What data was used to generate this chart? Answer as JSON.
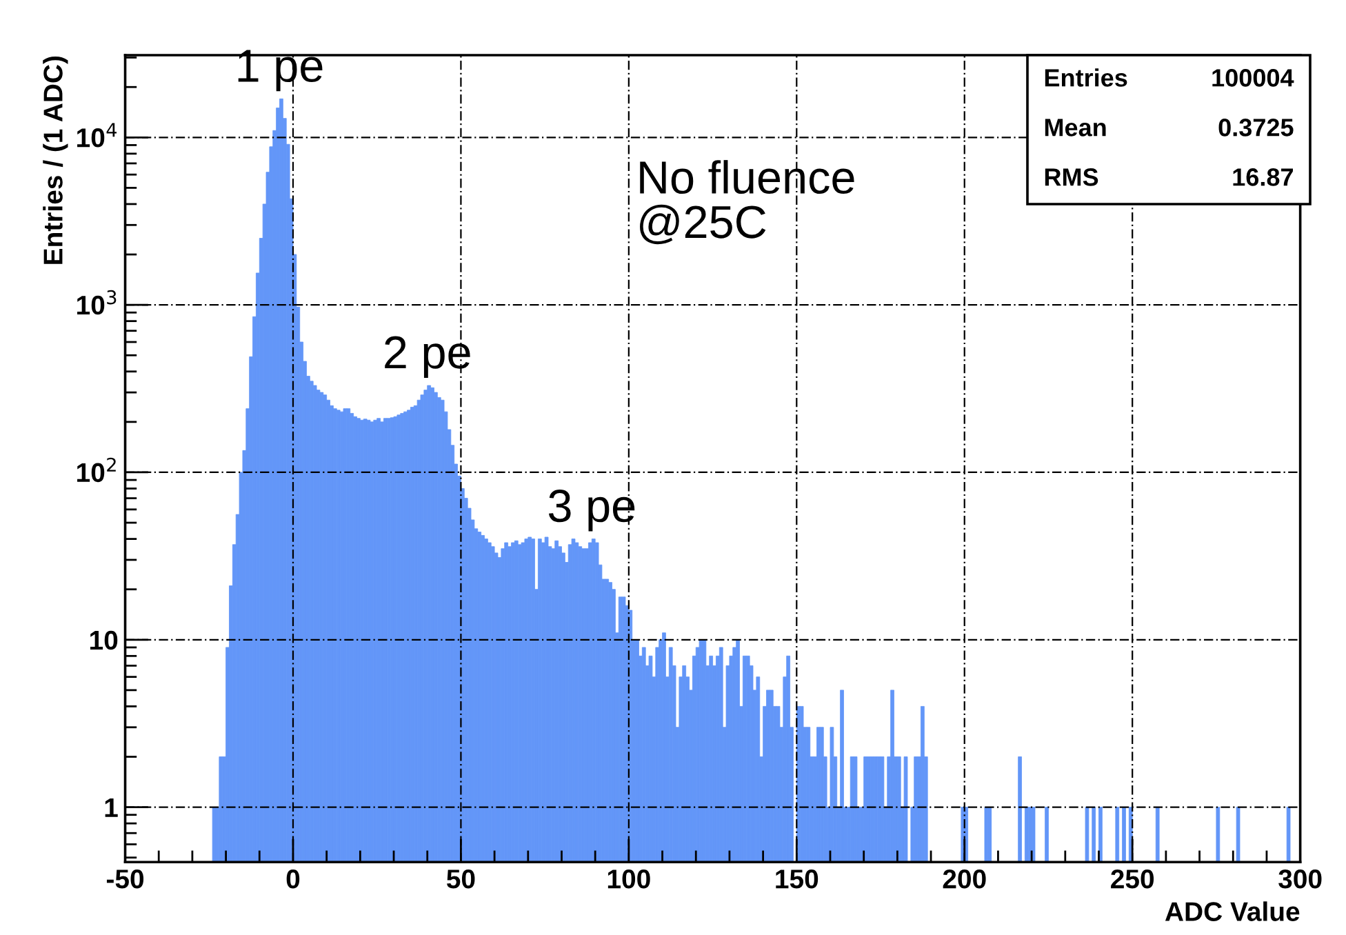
{
  "chart_data": {
    "type": "histogram",
    "xlabel": "ADC Value",
    "ylabel": "Entries / (1 ADC)",
    "color": "#6396f8",
    "log": "y",
    "grid": true,
    "xlim": [
      -50,
      300
    ],
    "xticks": [
      -50,
      0,
      50,
      100,
      150,
      200,
      250,
      300
    ],
    "ylim": [
      0.47,
      31000
    ],
    "yticks": [
      1,
      10,
      {
        "value": 100,
        "label": "10$^{2}$"
      },
      {
        "value": 1000,
        "label": "10$^{3}$"
      },
      {
        "value": 10000,
        "label": "10$^{4}$"
      }
    ],
    "annotations": [
      {
        "text": "1 pe",
        "x": -4,
        "y": 17000
      },
      {
        "text": "2 pe",
        "x": 40,
        "y": 330
      },
      {
        "text": "3 pe",
        "x": 89,
        "y": 40
      },
      "No fluence\n@25C",
      "Entries",
      "100004",
      "Mean",
      "0.3725",
      "RMS",
      "16.87"
    ],
    "bins": [
      -25,
      -24,
      -23,
      -22,
      -21,
      -20,
      -19,
      -18,
      -17,
      -16,
      -15,
      -14,
      -13,
      -12,
      -11,
      -10,
      -9,
      -8,
      -7,
      -6,
      -5,
      -4,
      -3,
      -2,
      -1,
      0,
      1,
      2,
      3,
      4,
      5,
      6,
      7,
      8,
      9,
      10,
      11,
      12,
      13,
      14,
      15,
      16,
      17,
      18,
      19,
      20,
      21,
      22,
      23,
      24,
      25,
      26,
      27,
      28,
      29,
      30,
      31,
      32,
      33,
      34,
      35,
      36,
      37,
      38,
      39,
      40,
      41,
      42,
      43,
      44,
      45,
      46,
      47,
      48,
      49,
      50,
      51,
      52,
      53,
      54,
      55,
      56,
      57,
      58,
      59,
      60,
      61,
      62,
      63,
      64,
      65,
      66,
      67,
      68,
      69,
      70,
      71,
      72,
      73,
      74,
      75,
      76,
      77,
      78,
      79,
      80,
      81,
      82,
      83,
      84,
      85,
      86,
      87,
      88,
      89,
      90,
      91,
      92,
      93,
      94,
      95,
      96,
      97,
      98,
      99,
      100,
      101,
      102,
      103,
      104,
      105,
      106,
      107,
      108,
      109,
      110,
      111,
      112,
      113,
      114,
      115,
      116,
      117,
      118,
      119,
      120,
      121,
      122,
      123,
      124,
      125,
      126,
      127,
      128,
      129,
      130,
      131,
      132,
      133,
      134,
      135,
      136,
      137,
      138,
      139,
      140,
      141,
      142,
      143,
      144,
      145,
      146,
      147,
      148,
      149,
      150,
      151,
      152,
      153,
      154,
      155,
      156,
      157,
      158,
      159,
      160,
      161,
      162,
      163,
      164,
      165,
      166,
      167,
      168,
      169,
      170,
      171,
      172,
      173,
      174,
      175,
      176,
      177,
      178,
      179,
      180,
      181,
      182,
      183,
      184,
      185,
      186,
      187,
      188,
      189,
      190,
      191,
      192,
      193,
      194,
      195,
      196,
      197,
      198,
      199,
      200,
      201,
      202,
      203,
      204,
      205,
      206,
      207,
      208,
      209,
      210,
      211,
      212,
      213,
      214,
      215,
      216,
      217,
      218,
      219,
      220,
      221,
      222,
      223,
      224,
      225,
      226,
      227,
      228,
      229,
      230,
      231,
      232,
      233,
      234,
      235,
      236,
      237,
      238,
      239,
      240,
      241,
      242,
      243,
      244,
      245,
      246,
      247,
      248,
      249,
      250,
      251,
      252,
      253,
      254,
      255,
      256,
      257,
      258,
      259,
      260,
      261,
      262,
      263,
      264,
      265,
      266,
      267,
      268,
      269,
      270,
      271,
      272,
      273,
      274,
      275,
      276,
      277,
      278,
      279,
      280,
      281,
      282,
      283,
      284,
      285,
      286,
      287,
      288,
      289,
      290,
      291,
      292,
      293,
      294,
      295,
      296,
      297,
      298,
      299,
      300
    ],
    "values": [
      null,
      1,
      1,
      2,
      2,
      9,
      21,
      37,
      56,
      100,
      135,
      240,
      490,
      850,
      1550,
      2500,
      4000,
      6200,
      8800,
      11000,
      15000,
      17000,
      13000,
      9100,
      4300,
      2000,
      970,
      600,
      460,
      375,
      350,
      330,
      310,
      300,
      290,
      270,
      250,
      240,
      235,
      230,
      240,
      240,
      225,
      215,
      210,
      205,
      208,
      205,
      200,
      205,
      210,
      200,
      210,
      210,
      212,
      215,
      220,
      225,
      230,
      235,
      245,
      250,
      270,
      290,
      310,
      330,
      320,
      300,
      280,
      270,
      230,
      180,
      145,
      112,
      95,
      80,
      70,
      61,
      52,
      46,
      44,
      42,
      40,
      38,
      36,
      33,
      31,
      35,
      38,
      36,
      38,
      39,
      37,
      38,
      40,
      41,
      40,
      20,
      40,
      38,
      41,
      36,
      35,
      39,
      36,
      33,
      29,
      37,
      40,
      38,
      36,
      35,
      35,
      38,
      40,
      38,
      28,
      23,
      23,
      22,
      20,
      11,
      18,
      18,
      16,
      15,
      10,
      10,
      8,
      9,
      7,
      8,
      6,
      9,
      10,
      11,
      6,
      9,
      7,
      3,
      6,
      7,
      6,
      5,
      8,
      9,
      10,
      10,
      7,
      8,
      7,
      8,
      9,
      3,
      7,
      8,
      9,
      10,
      4,
      8,
      8,
      7,
      5,
      6,
      2,
      4,
      5,
      5,
      4,
      4,
      3,
      6,
      8,
      3,
      null,
      4,
      4,
      3,
      3,
      2,
      2,
      3,
      3,
      2,
      1,
      3,
      2,
      1,
      5,
      1,
      1,
      2,
      2,
      1,
      1,
      2,
      2,
      2,
      2,
      2,
      2,
      1,
      2,
      5,
      2,
      2,
      1,
      2,
      null,
      1,
      2,
      2,
      4,
      2,
      null,
      null,
      null,
      null,
      null,
      null,
      null,
      null,
      null,
      null,
      1,
      1,
      null,
      null,
      null,
      null,
      null,
      1,
      1,
      null,
      null,
      null,
      null,
      null,
      null,
      null,
      null,
      2,
      null,
      1,
      1,
      1,
      null,
      null,
      null,
      1,
      null,
      null,
      null,
      null,
      null,
      null,
      null,
      null,
      null,
      null,
      null,
      1,
      null,
      1,
      null,
      1,
      null,
      null,
      null,
      null,
      1,
      null,
      1,
      null,
      1,
      null,
      null,
      null,
      null,
      null,
      null,
      null,
      1,
      null,
      null,
      null,
      null,
      null,
      null,
      null,
      null,
      null,
      null,
      null,
      null,
      null,
      null,
      null,
      null,
      null,
      1,
      null,
      null,
      null,
      null,
      null,
      1,
      null,
      null,
      null,
      null,
      null,
      null,
      null,
      null,
      null,
      null,
      null,
      null,
      null,
      null,
      1,
      null,
      null,
      null
    ]
  }
}
